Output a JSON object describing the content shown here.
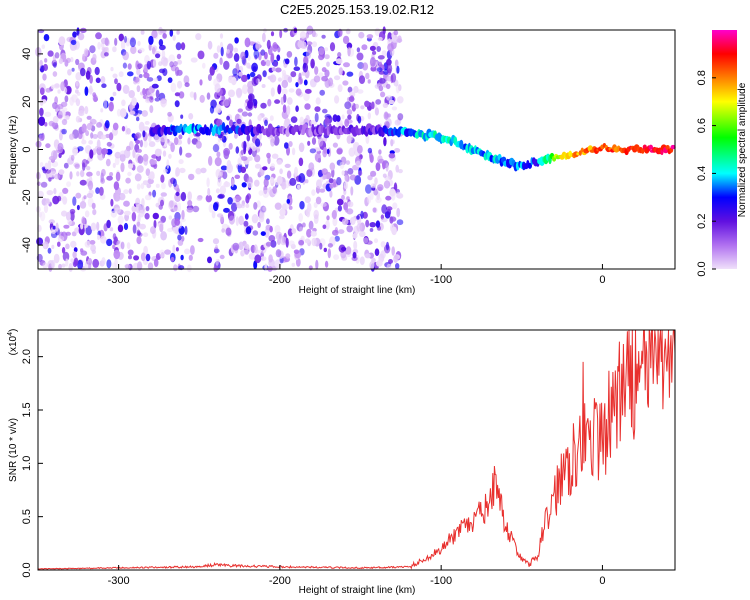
{
  "title": "C2E5.2025.153.19.02.R12",
  "chart_data": [
    {
      "type": "heatmap",
      "xlabel": "Height of straight line (km)",
      "ylabel": "Frequency (Hz)",
      "xlim": [
        -350,
        45
      ],
      "ylim": [
        -50,
        50
      ],
      "xticks": [
        -300,
        -200,
        -100,
        0
      ],
      "yticks": [
        -40,
        -20,
        0,
        20,
        40
      ],
      "colorbar": {
        "label": "Normalized spectral amplitude",
        "range": [
          0,
          1
        ],
        "ticks": [
          0.0,
          0.2,
          0.4,
          0.6,
          0.8
        ],
        "colors": [
          "#f0e0fa",
          "#8a2be2",
          "#0000ff",
          "#00ffff",
          "#00ff00",
          "#ffff00",
          "#ff7f00",
          "#ff0000",
          "#ff00cc"
        ]
      },
      "noise_region_km": [
        -350,
        -125
      ],
      "ridge": [
        {
          "x": -280,
          "f": 8,
          "amp": 0.18
        },
        {
          "x": -265,
          "f": 8,
          "amp": 0.3
        },
        {
          "x": -255,
          "f": 9,
          "amp": 0.35
        },
        {
          "x": -245,
          "f": 8,
          "amp": 0.32
        },
        {
          "x": -235,
          "f": 9,
          "amp": 0.35
        },
        {
          "x": -225,
          "f": 8,
          "amp": 0.28
        },
        {
          "x": -200,
          "f": 8,
          "amp": 0.12
        },
        {
          "x": -170,
          "f": 8,
          "amp": 0.14
        },
        {
          "x": -150,
          "f": 8,
          "amp": 0.16
        },
        {
          "x": -140,
          "f": 8,
          "amp": 0.2
        },
        {
          "x": -130,
          "f": 8,
          "amp": 0.3
        },
        {
          "x": -120,
          "f": 7,
          "amp": 0.35
        },
        {
          "x": -110,
          "f": 6,
          "amp": 0.4
        },
        {
          "x": -100,
          "f": 5,
          "amp": 0.42
        },
        {
          "x": -90,
          "f": 3,
          "amp": 0.38
        },
        {
          "x": -80,
          "f": 0,
          "amp": 0.36
        },
        {
          "x": -70,
          "f": -3,
          "amp": 0.38
        },
        {
          "x": -60,
          "f": -5,
          "amp": 0.35
        },
        {
          "x": -50,
          "f": -7,
          "amp": 0.32
        },
        {
          "x": -40,
          "f": -5,
          "amp": 0.3
        },
        {
          "x": -30,
          "f": -3,
          "amp": 0.6
        },
        {
          "x": -20,
          "f": -2,
          "amp": 0.75
        },
        {
          "x": -10,
          "f": -1,
          "amp": 0.8
        },
        {
          "x": 0,
          "f": 1,
          "amp": 0.82
        },
        {
          "x": 10,
          "f": 0,
          "amp": 0.85
        },
        {
          "x": 20,
          "f": 0,
          "amp": 0.88
        },
        {
          "x": 30,
          "f": 0,
          "amp": 0.9
        },
        {
          "x": 45,
          "f": 0,
          "amp": 0.92
        }
      ]
    },
    {
      "type": "line",
      "xlabel": "Height of straight line (km)",
      "ylabel": "SNR (10 * v/v)",
      "multiplier": "(x10",
      "multiplier_exp": "4",
      "multiplier_close": ")",
      "xlim": [
        -350,
        45
      ],
      "ylim": [
        0,
        2.25
      ],
      "xticks": [
        -300,
        -200,
        -100,
        0
      ],
      "yticks": [
        "0.0",
        "0.5",
        "1.0",
        "1.5",
        "2.0"
      ],
      "color": "#e8302e",
      "series": [
        {
          "x": [
            -350,
            -300,
            -250,
            -240,
            -230,
            -200,
            -150,
            -120,
            -110,
            -100,
            -90,
            -80,
            -75,
            -70,
            -67,
            -65,
            -62,
            -60,
            -55,
            -50,
            -45,
            -40,
            -35,
            -30,
            -25,
            -20,
            -15,
            -12,
            -10,
            -8,
            -5,
            -3,
            0,
            5,
            10,
            15,
            20,
            25,
            30,
            35,
            40,
            45
          ],
          "y": [
            0.01,
            0.02,
            0.03,
            0.05,
            0.04,
            0.03,
            0.02,
            0.03,
            0.1,
            0.2,
            0.35,
            0.45,
            0.55,
            0.6,
            0.8,
            0.65,
            0.55,
            0.4,
            0.25,
            0.1,
            0.05,
            0.15,
            0.45,
            0.7,
            0.9,
            1.05,
            1.2,
            1.5,
            1.2,
            1.1,
            1.3,
            1.1,
            1.35,
            1.4,
            1.6,
            1.75,
            1.85,
            1.9,
            1.95,
            2.0,
            2.02,
            2.03
          ]
        }
      ]
    }
  ]
}
